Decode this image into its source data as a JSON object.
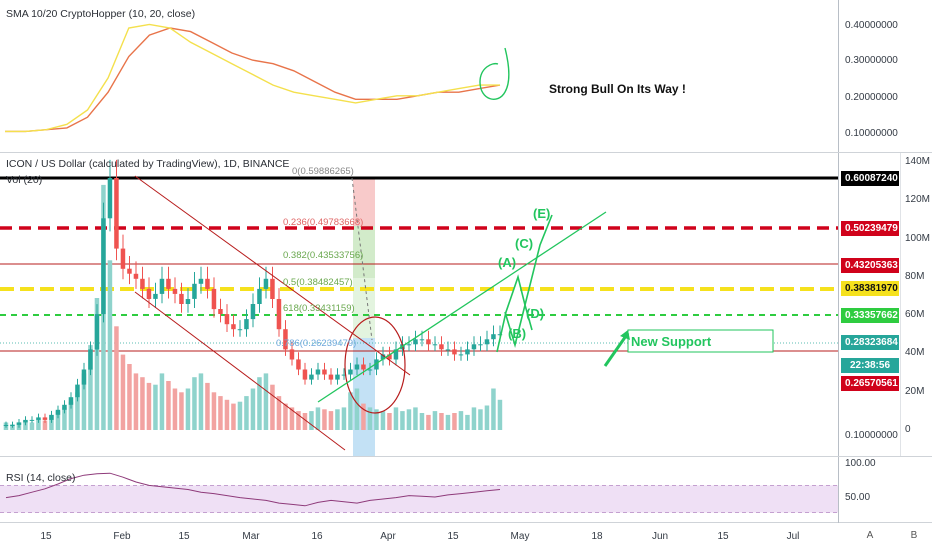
{
  "sma_pane": {
    "legend": "SMA 10/20 CryptoHopper (10, 20, close)",
    "annotation": "Strong Bull On Its Way !",
    "axis_ticks": [
      "0.40000000",
      "0.30000000",
      "0.20000000",
      "0.10000000"
    ]
  },
  "price_pane": {
    "legend": "ICON / US Dollar (calculated by TradingView), 1D, BINANCE",
    "volume_label": "Vol (20)",
    "axis_ticks": [
      "0.10000000"
    ],
    "volume_ticks": [
      "140M",
      "120M",
      "100M",
      "80M",
      "60M",
      "40M",
      "20M",
      "0"
    ],
    "price_tags": [
      {
        "value": "0.60087240",
        "color": "#000000"
      },
      {
        "value": "0.50239479",
        "color": "#d0021b"
      },
      {
        "value": "0.43205363",
        "color": "#d0021b"
      },
      {
        "value": "0.38381970",
        "color": "#f5e11d"
      },
      {
        "value": "0.33357662",
        "color": "#2ecc40"
      },
      {
        "value": "0.28323684",
        "color": "#26a69a"
      },
      {
        "value": "22:38:56",
        "color": "#26a69a"
      },
      {
        "value": "0.26570561",
        "color": "#d0021b"
      }
    ],
    "fib_labels": [
      "0(0.59886265)",
      "0.236(0.49783668)",
      "0.382(0.43533756)",
      "0.5(0.38482457)",
      "618(0.33431159)",
      "0.786(0.26239479)"
    ],
    "wave_labels": [
      "(E)",
      "(C)",
      "(A)",
      "(D)",
      "(B)"
    ],
    "support_label": "New Support"
  },
  "rsi_pane": {
    "legend": "RSI (14, close)",
    "axis_ticks": [
      "100.00",
      "50.00"
    ]
  },
  "x_axis": {
    "ticks": [
      "15",
      "Feb",
      "15",
      "Mar",
      "16",
      "Apr",
      "15",
      "May",
      "18",
      "Jun",
      "15",
      "Jul"
    ]
  },
  "buttons": [
    "A",
    "B"
  ],
  "colors": {
    "up": "#26a69a",
    "down": "#ef5350",
    "sma_fast": "#f4e04d",
    "sma_slow": "#e8744a",
    "rsi": "#8e3a7a"
  },
  "chart_data": {
    "type": "candlestick",
    "title": "ICON / US Dollar (calculated by TradingView), 1D, BINANCE",
    "x_ticks": [
      "15",
      "Feb",
      "15",
      "Mar",
      "16",
      "Apr",
      "15",
      "May",
      "18",
      "Jun",
      "15",
      "Jul"
    ],
    "price_levels": [
      0.6008724,
      0.50239479,
      0.43205363,
      0.3838197,
      0.33357662,
      0.28323684,
      0.26570561
    ],
    "close_series": [
      0.11,
      0.11,
      0.115,
      0.12,
      0.12,
      0.125,
      0.12,
      0.13,
      0.14,
      0.15,
      0.165,
      0.19,
      0.22,
      0.26,
      0.33,
      0.52,
      0.6,
      0.46,
      0.42,
      0.41,
      0.4,
      0.38,
      0.36,
      0.37,
      0.4,
      0.38,
      0.37,
      0.35,
      0.36,
      0.39,
      0.4,
      0.38,
      0.34,
      0.33,
      0.31,
      0.3,
      0.3,
      0.32,
      0.35,
      0.38,
      0.4,
      0.36,
      0.3,
      0.26,
      0.24,
      0.22,
      0.2,
      0.21,
      0.22,
      0.21,
      0.2,
      0.21,
      0.21,
      0.22,
      0.23,
      0.22,
      0.22,
      0.24,
      0.25,
      0.24,
      0.26,
      0.27,
      0.27,
      0.28,
      0.28,
      0.27,
      0.27,
      0.26,
      0.26,
      0.25,
      0.25,
      0.26,
      0.27,
      0.27,
      0.28,
      0.29,
      0.29
    ],
    "volume_millions": [
      4,
      3,
      4,
      5,
      4,
      6,
      5,
      8,
      10,
      12,
      15,
      20,
      30,
      45,
      70,
      130,
      90,
      55,
      40,
      35,
      30,
      28,
      25,
      24,
      30,
      26,
      22,
      20,
      22,
      28,
      30,
      25,
      20,
      18,
      16,
      14,
      15,
      18,
      22,
      28,
      30,
      24,
      18,
      14,
      12,
      10,
      9,
      10,
      12,
      11,
      10,
      11,
      12,
      20,
      22,
      14,
      12,
      11,
      10,
      9,
      12,
      10,
      11,
      12,
      9,
      8,
      10,
      9,
      8,
      9,
      10,
      8,
      12,
      11,
      13,
      22,
      16
    ],
    "sma_fast": [
      0.11,
      0.11,
      0.115,
      0.13,
      0.17,
      0.26,
      0.4,
      0.41,
      0.4,
      0.36,
      0.33,
      0.3,
      0.27,
      0.24,
      0.22,
      0.21,
      0.2,
      0.19,
      0.2,
      0.21,
      0.21,
      0.22,
      0.23,
      0.24,
      0.24
    ],
    "sma_slow": [
      0.11,
      0.11,
      0.115,
      0.12,
      0.15,
      0.22,
      0.32,
      0.38,
      0.4,
      0.39,
      0.36,
      0.33,
      0.31,
      0.3,
      0.28,
      0.25,
      0.22,
      0.2,
      0.2,
      0.2,
      0.21,
      0.22,
      0.22,
      0.23,
      0.24
    ],
    "rsi": [
      52,
      55,
      60,
      65,
      72,
      80,
      85,
      87,
      88,
      82,
      75,
      70,
      68,
      66,
      64,
      60,
      58,
      55,
      52,
      50,
      48,
      44,
      42,
      40,
      45,
      48,
      46,
      44,
      48,
      50,
      52,
      55,
      54,
      53,
      56,
      58,
      60,
      62,
      64
    ]
  }
}
